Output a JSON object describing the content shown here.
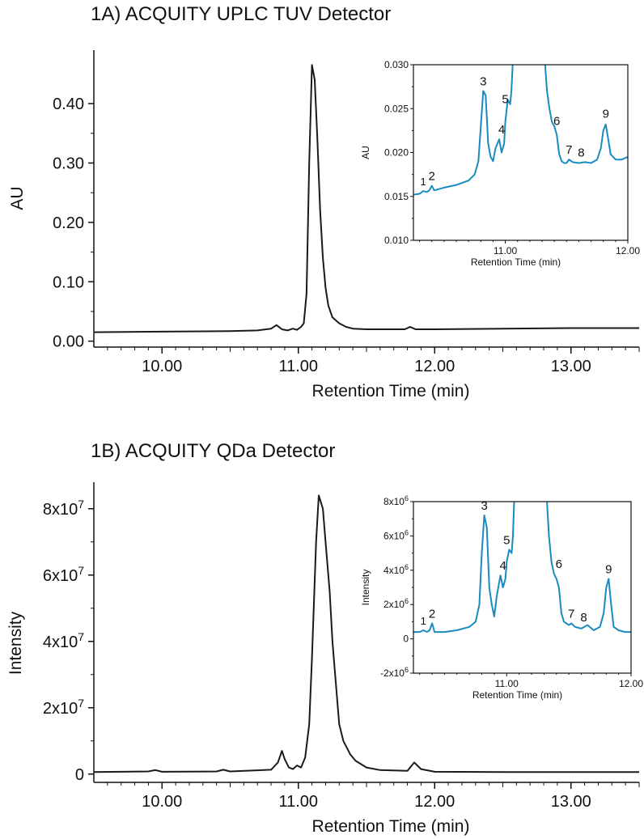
{
  "chart_data": [
    {
      "id": "A",
      "type": "line",
      "title": "1A) ACQUITY UPLC TUV Detector",
      "xlabel": "Retention Time (min)",
      "ylabel": "AU",
      "xlim": [
        9.5,
        13.5
      ],
      "ylim": [
        -0.01,
        0.49
      ],
      "xticks": [
        {
          "v": 10.0,
          "label": "10.00"
        },
        {
          "v": 11.0,
          "label": "11.00"
        },
        {
          "v": 12.0,
          "label": "12.00"
        },
        {
          "v": 13.0,
          "label": "13.00"
        }
      ],
      "yticks": [
        {
          "v": 0.0,
          "label": "0.00"
        },
        {
          "v": 0.1,
          "label": "0.10"
        },
        {
          "v": 0.2,
          "label": "0.20"
        },
        {
          "v": 0.3,
          "label": "0.30"
        },
        {
          "v": 0.4,
          "label": "0.40"
        }
      ],
      "series": [
        {
          "color": "#1a1a1a",
          "x": [
            9.5,
            10.0,
            10.5,
            10.7,
            10.8,
            10.84,
            10.88,
            10.92,
            10.96,
            10.99,
            11.02,
            11.04,
            11.06,
            11.08,
            11.1,
            11.12,
            11.14,
            11.16,
            11.18,
            11.2,
            11.22,
            11.25,
            11.3,
            11.35,
            11.4,
            11.5,
            11.7,
            11.78,
            11.82,
            11.86,
            12.0,
            12.5,
            13.0,
            13.5
          ],
          "y": [
            0.015,
            0.016,
            0.017,
            0.018,
            0.021,
            0.027,
            0.02,
            0.018,
            0.021,
            0.019,
            0.024,
            0.03,
            0.08,
            0.3,
            0.465,
            0.44,
            0.34,
            0.22,
            0.14,
            0.09,
            0.06,
            0.04,
            0.03,
            0.024,
            0.021,
            0.02,
            0.02,
            0.02,
            0.024,
            0.02,
            0.02,
            0.021,
            0.022,
            0.022
          ]
        }
      ],
      "inset": {
        "xlabel": "Retention Time (min)",
        "ylabel": "AU",
        "xlim": [
          10.25,
          12.0
        ],
        "ylim": [
          0.01,
          0.03
        ],
        "xticks": [
          {
            "v": 11.0,
            "label": "11.00"
          },
          {
            "v": 12.0,
            "label": "12.00"
          }
        ],
        "yticks": [
          {
            "v": 0.01,
            "label": "0.010"
          },
          {
            "v": 0.015,
            "label": "0.015"
          },
          {
            "v": 0.02,
            "label": "0.020"
          },
          {
            "v": 0.025,
            "label": "0.025"
          },
          {
            "v": 0.03,
            "label": "0.030"
          }
        ],
        "series": [
          {
            "color": "#1a8bc0",
            "x": [
              10.25,
              10.3,
              10.33,
              10.36,
              10.38,
              10.4,
              10.42,
              10.45,
              10.5,
              10.6,
              10.7,
              10.75,
              10.78,
              10.8,
              10.82,
              10.84,
              10.86,
              10.88,
              10.9,
              10.92,
              10.95,
              10.97,
              10.99,
              11.0,
              11.02,
              11.04,
              11.05,
              11.06,
              11.07,
              11.32,
              11.34,
              11.36,
              11.38,
              11.4,
              11.42,
              11.44,
              11.46,
              11.48,
              11.5,
              11.52,
              11.55,
              11.6,
              11.65,
              11.7,
              11.75,
              11.78,
              11.8,
              11.82,
              11.84,
              11.86,
              11.9,
              11.95,
              12.0
            ],
            "y": [
              0.0152,
              0.0153,
              0.0156,
              0.0155,
              0.0157,
              0.0162,
              0.0157,
              0.0158,
              0.016,
              0.0163,
              0.0168,
              0.0175,
              0.019,
              0.023,
              0.027,
              0.0265,
              0.021,
              0.0195,
              0.019,
              0.0205,
              0.0215,
              0.02,
              0.021,
              0.0235,
              0.026,
              0.0255,
              0.027,
              0.03,
              0.031,
              0.031,
              0.027,
              0.025,
              0.0235,
              0.023,
              0.022,
              0.0198,
              0.019,
              0.0188,
              0.0188,
              0.0192,
              0.0189,
              0.0188,
              0.0189,
              0.0188,
              0.0192,
              0.0205,
              0.0225,
              0.0232,
              0.0215,
              0.0198,
              0.0192,
              0.0192,
              0.0195
            ]
          }
        ],
        "peak_labels": [
          {
            "label": "1",
            "x": 10.33,
            "y": 0.0156
          },
          {
            "label": "2",
            "x": 10.4,
            "y": 0.0162
          },
          {
            "label": "3",
            "x": 10.82,
            "y": 0.027
          },
          {
            "label": "4",
            "x": 10.97,
            "y": 0.0215
          },
          {
            "label": "5",
            "x": 11.0,
            "y": 0.025
          },
          {
            "label": "6",
            "x": 11.42,
            "y": 0.0225
          },
          {
            "label": "7",
            "x": 11.52,
            "y": 0.0192
          },
          {
            "label": "8",
            "x": 11.62,
            "y": 0.0189
          },
          {
            "label": "9",
            "x": 11.82,
            "y": 0.0233
          }
        ]
      }
    },
    {
      "id": "B",
      "type": "line",
      "title": "1B) ACQUITY QDa Detector",
      "xlabel": "Retention Time (min)",
      "ylabel": "Intensity",
      "xlim": [
        9.5,
        13.5
      ],
      "ylim": [
        -2500000,
        88000000
      ],
      "xticks": [
        {
          "v": 10.0,
          "label": "10.00"
        },
        {
          "v": 11.0,
          "label": "11.00"
        },
        {
          "v": 12.0,
          "label": "12.00"
        },
        {
          "v": 13.0,
          "label": "13.00"
        }
      ],
      "yticks": [
        {
          "v": 0,
          "label": "0"
        },
        {
          "v": 20000000,
          "label": "2x10",
          "exp": "7"
        },
        {
          "v": 40000000,
          "label": "4x10",
          "exp": "7"
        },
        {
          "v": 60000000,
          "label": "6x10",
          "exp": "7"
        },
        {
          "v": 80000000,
          "label": "8x10",
          "exp": "7"
        }
      ],
      "series": [
        {
          "color": "#1a1a1a",
          "x": [
            9.5,
            9.9,
            9.95,
            10.0,
            10.4,
            10.45,
            10.5,
            10.8,
            10.85,
            10.88,
            10.9,
            10.93,
            10.96,
            10.99,
            11.02,
            11.05,
            11.08,
            11.1,
            11.13,
            11.15,
            11.18,
            11.2,
            11.23,
            11.25,
            11.28,
            11.3,
            11.33,
            11.38,
            11.42,
            11.46,
            11.5,
            11.6,
            11.8,
            11.85,
            11.9,
            12.0,
            12.5,
            13.0,
            13.5
          ],
          "y": [
            600000,
            800000,
            1200000,
            700000,
            800000,
            1300000,
            800000,
            1300000,
            3500000,
            7000000,
            4500000,
            2000000,
            1500000,
            2600000,
            2000000,
            5000000,
            15000000,
            35000000,
            70000000,
            84000000,
            80000000,
            70000000,
            55000000,
            40000000,
            25000000,
            15000000,
            10000000,
            6000000,
            4000000,
            3000000,
            2000000,
            1200000,
            1000000,
            3500000,
            1500000,
            700000,
            600000,
            600000,
            600000
          ]
        }
      ],
      "inset": {
        "xlabel": "Retention Time (min)",
        "ylabel": "Intensity",
        "xlim": [
          10.25,
          12.0
        ],
        "ylim": [
          -2000000,
          8000000
        ],
        "xticks": [
          {
            "v": 11.0,
            "label": "11.00"
          },
          {
            "v": 12.0,
            "label": "12.00"
          }
        ],
        "yticks": [
          {
            "v": -2000000,
            "label": "-2x10",
            "exp": "6"
          },
          {
            "v": 0,
            "label": "0"
          },
          {
            "v": 2000000,
            "label": "2x10",
            "exp": "6"
          },
          {
            "v": 4000000,
            "label": "4x10",
            "exp": "6"
          },
          {
            "v": 6000000,
            "label": "6x10",
            "exp": "6"
          },
          {
            "v": 8000000,
            "label": "8x10",
            "exp": "6"
          }
        ],
        "series": [
          {
            "color": "#1a8bc0",
            "x": [
              10.25,
              10.3,
              10.33,
              10.36,
              10.38,
              10.4,
              10.42,
              10.45,
              10.5,
              10.6,
              10.7,
              10.75,
              10.78,
              10.8,
              10.82,
              10.84,
              10.86,
              10.88,
              10.9,
              10.92,
              10.95,
              10.97,
              10.99,
              11.0,
              11.02,
              11.04,
              11.05,
              11.06,
              11.07,
              11.32,
              11.34,
              11.36,
              11.38,
              11.4,
              11.42,
              11.44,
              11.46,
              11.48,
              11.5,
              11.52,
              11.55,
              11.6,
              11.65,
              11.7,
              11.75,
              11.78,
              11.8,
              11.82,
              11.84,
              11.86,
              11.9,
              11.95,
              12.0
            ],
            "y": [
              400000,
              400000,
              500000,
              400000,
              500000,
              900000,
              400000,
              400000,
              400000,
              500000,
              700000,
              1000000,
              2000000,
              5000000,
              7200000,
              6500000,
              3000000,
              2000000,
              1300000,
              2500000,
              3700000,
              3000000,
              3500000,
              4500000,
              5200000,
              5000000,
              6000000,
              8000000,
              8500000,
              8500000,
              6000000,
              4500000,
              3800000,
              3500000,
              3000000,
              1500000,
              1000000,
              900000,
              800000,
              900000,
              700000,
              600000,
              800000,
              500000,
              700000,
              1500000,
              3000000,
              3500000,
              2000000,
              700000,
              500000,
              400000,
              400000
            ]
          }
        ],
        "peak_labels": [
          {
            "label": "1",
            "x": 10.33,
            "y": 500000
          },
          {
            "label": "2",
            "x": 10.4,
            "y": 900000
          },
          {
            "label": "3",
            "x": 10.82,
            "y": 7200000
          },
          {
            "label": "4",
            "x": 10.97,
            "y": 3700000
          },
          {
            "label": "5",
            "x": 11.0,
            "y": 5200000
          },
          {
            "label": "6",
            "x": 11.42,
            "y": 3800000
          },
          {
            "label": "7",
            "x": 11.52,
            "y": 900000
          },
          {
            "label": "8",
            "x": 11.62,
            "y": 700000
          },
          {
            "label": "9",
            "x": 11.82,
            "y": 3500000
          }
        ]
      }
    }
  ]
}
